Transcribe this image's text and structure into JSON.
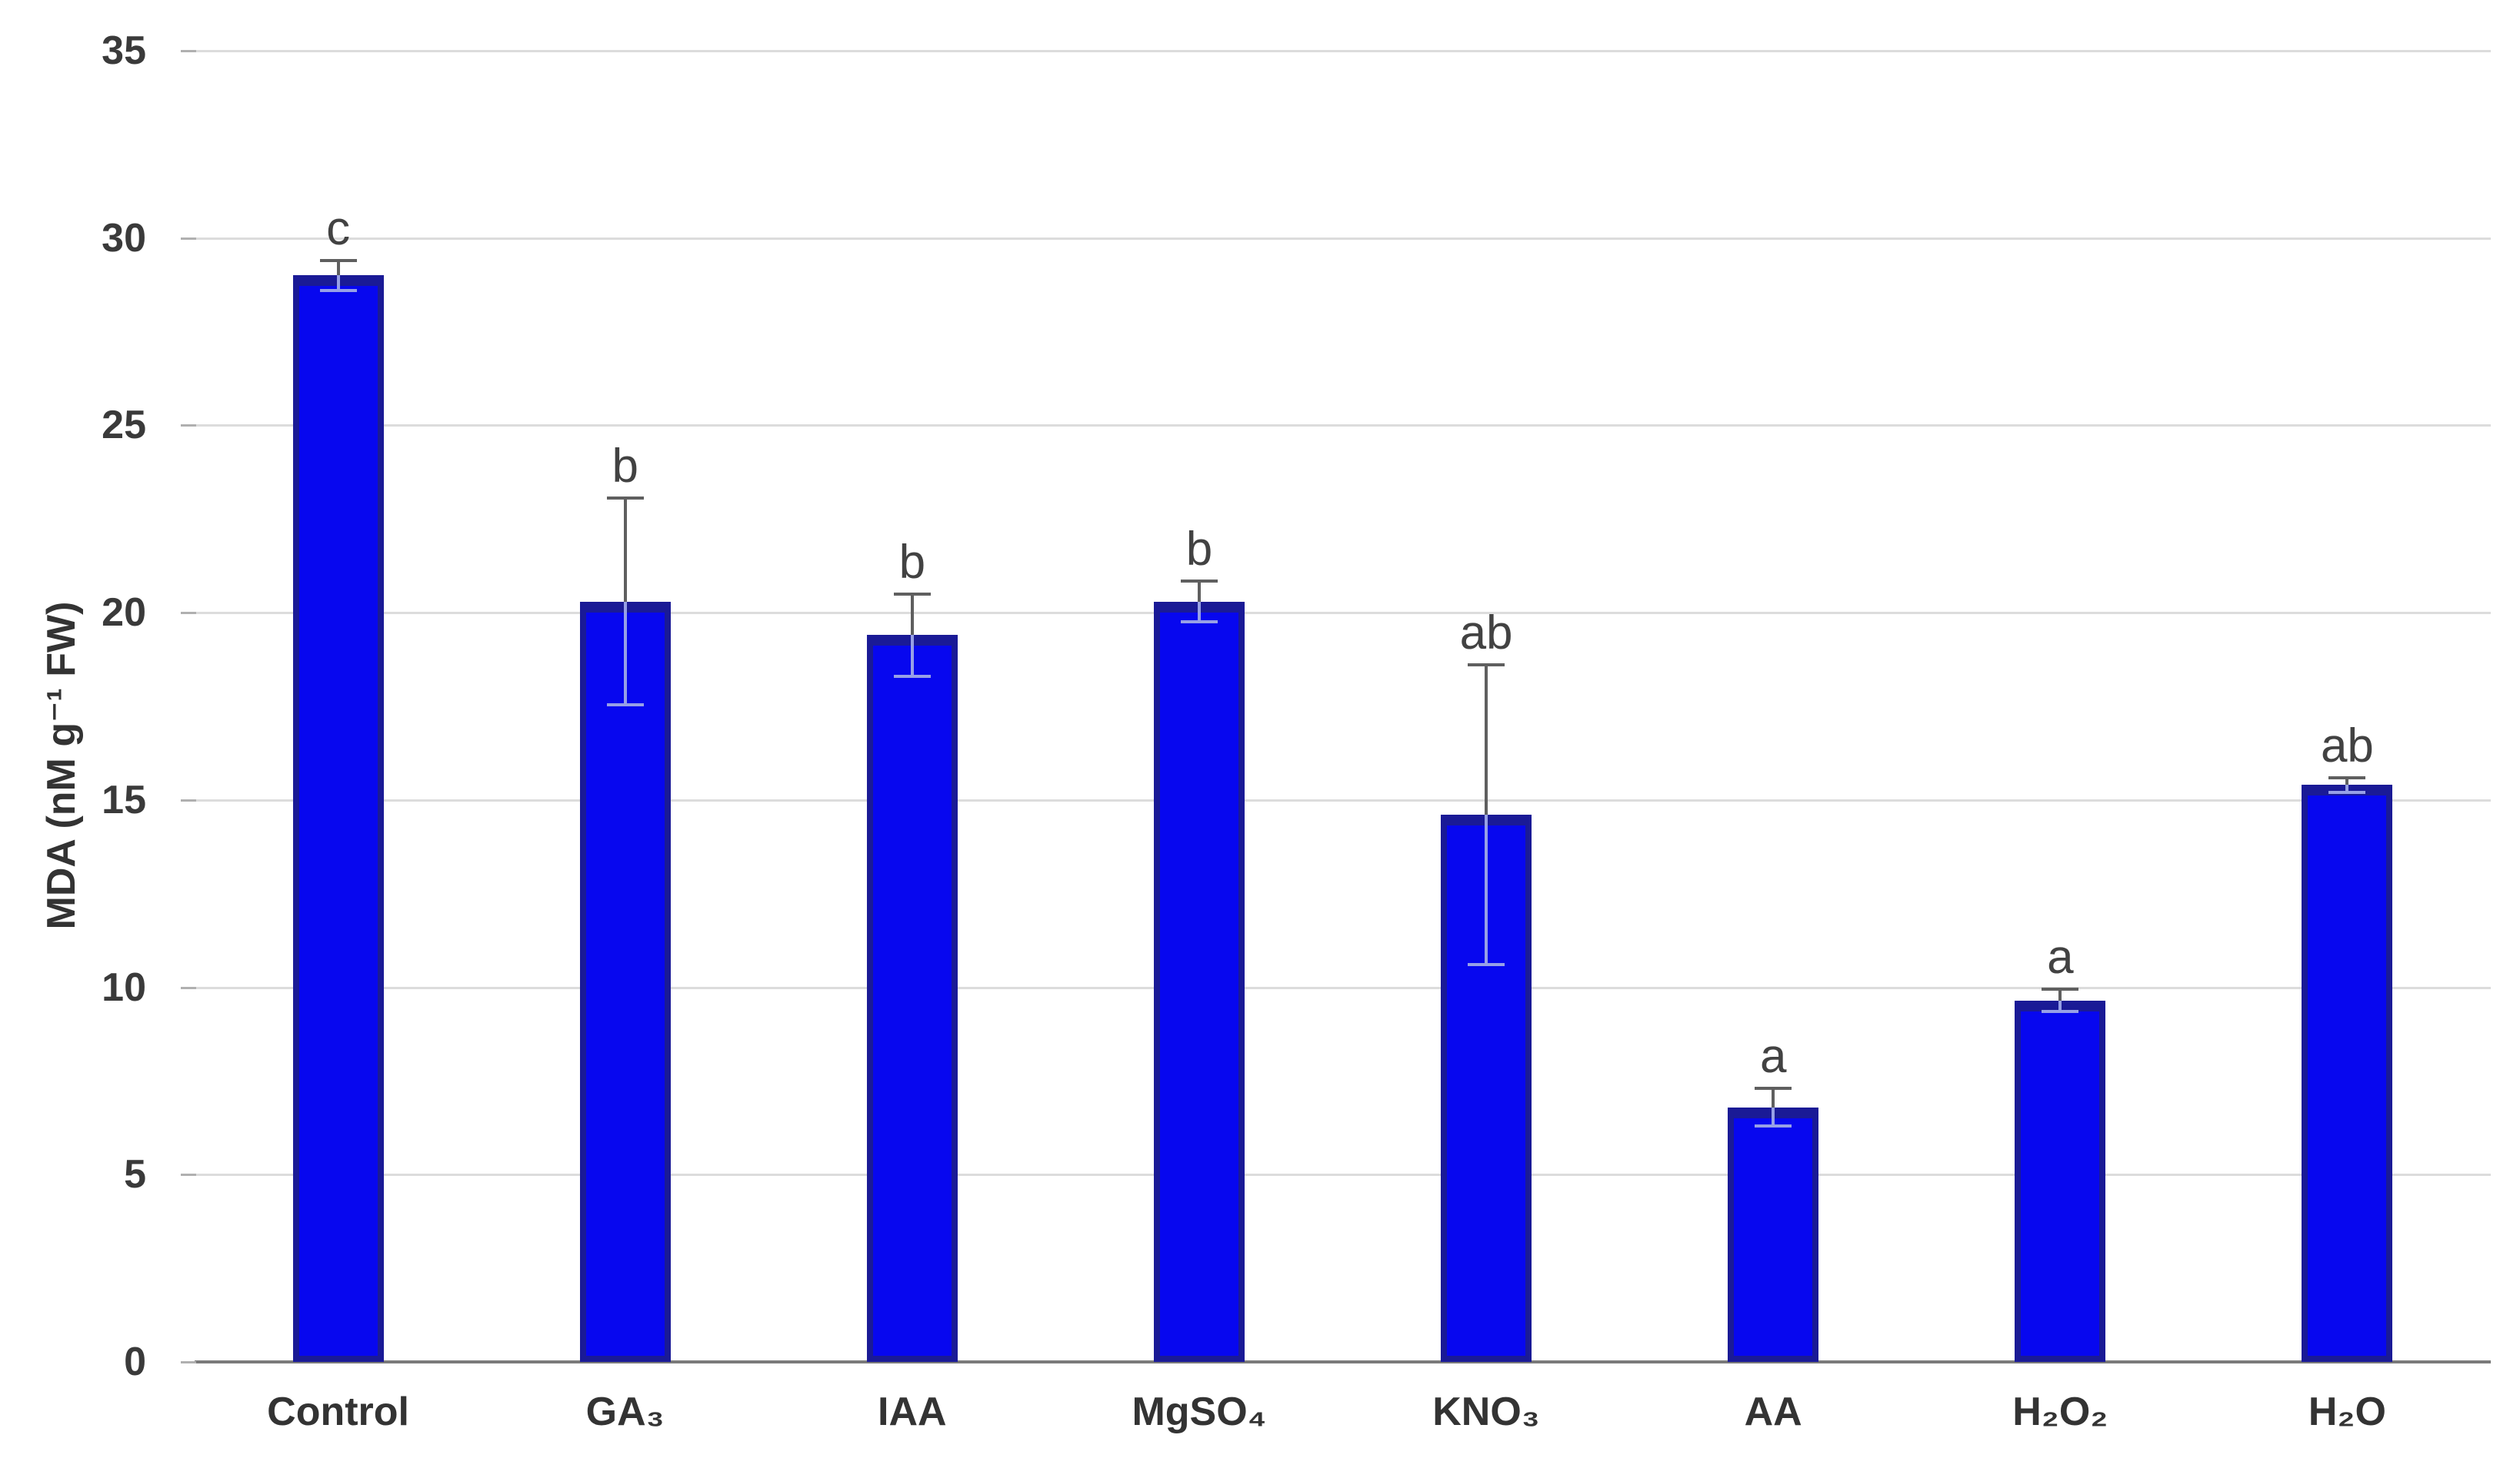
{
  "chart_data": {
    "type": "bar",
    "title": "",
    "xlabel": "",
    "ylabel": "MDA (nM g⁻¹ FW)",
    "ylim": [
      0,
      35
    ],
    "yticks": [
      0,
      5,
      10,
      15,
      20,
      25,
      30,
      35
    ],
    "grid": "horizontal-major",
    "legend": false,
    "categories": [
      "Control",
      "GA₃",
      "IAA",
      "MgSO₄",
      "KNO₃",
      "AA",
      "H₂O₂",
      "H₂O"
    ],
    "series": [
      {
        "name": "MDA",
        "values": [
          29.0,
          20.3,
          19.4,
          20.3,
          14.6,
          6.8,
          9.65,
          15.4
        ],
        "error_bars": [
          0.4,
          2.75,
          1.1,
          0.55,
          4.0,
          0.5,
          0.3,
          0.2
        ],
        "sig_letters": [
          "c",
          "b",
          "b",
          "b",
          "ab",
          "a",
          "a",
          "ab"
        ]
      }
    ],
    "colors": {
      "bar_fill": "#0707ef",
      "bar_border": "#1a1a96",
      "error_bar": "#5f5f5f",
      "error_bar_inside": "#97a0e6",
      "gridline": "#dcdcdc",
      "axis_line": "#7a7a7a",
      "tick_label": "#3a3a3a",
      "sig_letter": "#424242",
      "background": "#ffffff"
    }
  }
}
